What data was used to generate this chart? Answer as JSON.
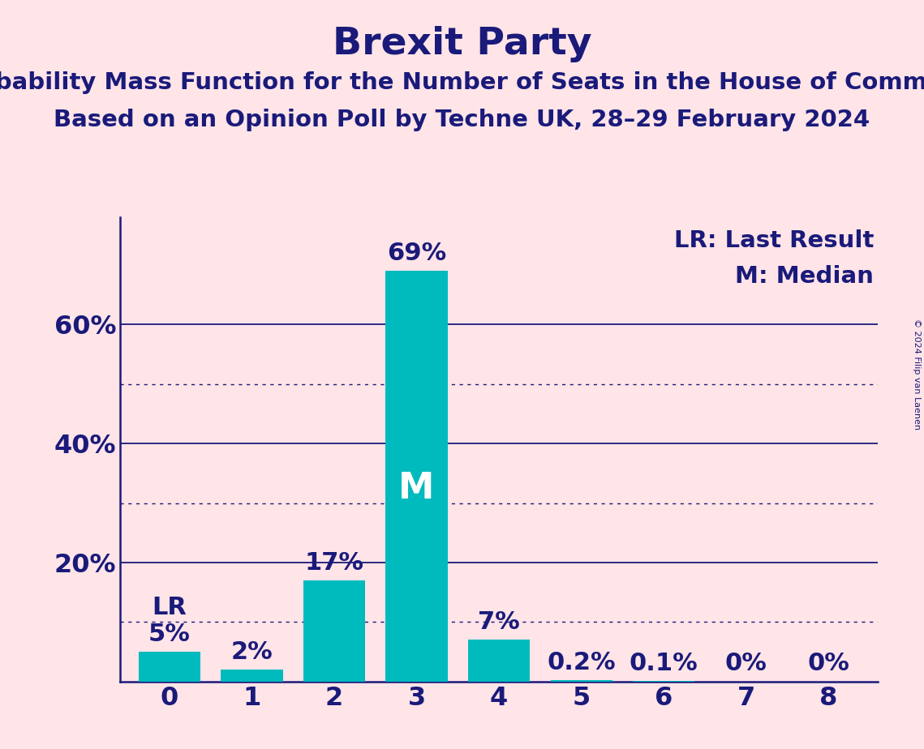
{
  "title": "Brexit Party",
  "subtitle1": "Probability Mass Function for the Number of Seats in the House of Commons",
  "subtitle2": "Based on an Opinion Poll by Techne UK, 28–29 February 2024",
  "copyright": "© 2024 Filip van Laenen",
  "categories": [
    0,
    1,
    2,
    3,
    4,
    5,
    6,
    7,
    8
  ],
  "values": [
    5,
    2,
    17,
    69,
    7,
    0.2,
    0.1,
    0,
    0
  ],
  "bar_color": "#00BBBD",
  "background_color": "#FFE4E8",
  "text_color": "#1a1a7a",
  "axis_color": "#1a1a7a",
  "title_fontsize": 34,
  "subtitle_fontsize": 21,
  "tick_fontsize": 23,
  "annotation_fontsize": 22,
  "legend_fontsize": 21,
  "ylabel_ticks": [
    20,
    40,
    60
  ],
  "ylim": [
    0,
    78
  ],
  "solid_gridlines": [
    20,
    40,
    60
  ],
  "dotted_gridlines": [
    10,
    30,
    50
  ],
  "lr_bar": 0,
  "median_bar": 3,
  "bar_labels": [
    "5%",
    "2%",
    "17%",
    "69%",
    "7%",
    "0.2%",
    "0.1%",
    "0%",
    "0%"
  ],
  "legend_lr": "LR: Last Result",
  "legend_m": "M: Median"
}
